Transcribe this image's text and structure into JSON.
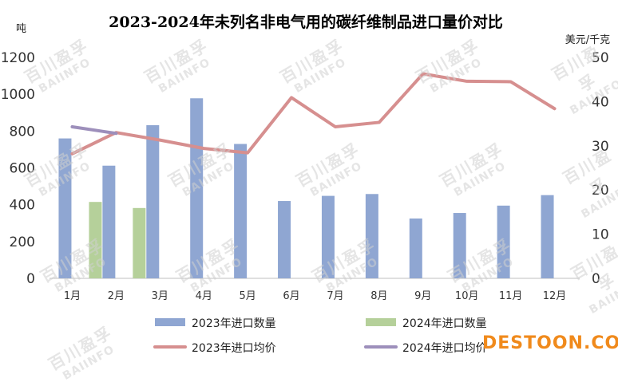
{
  "chart_data": {
    "type": "bar",
    "title": "2023-2024年未列名非电气用的碳纤维制品进口量价对比",
    "y_left_label": "吨",
    "y_right_label": "美元/千克",
    "categories": [
      "1月",
      "2月",
      "3月",
      "4月",
      "5月",
      "6月",
      "7月",
      "8月",
      "9月",
      "10月",
      "11月",
      "12月"
    ],
    "y_left_ticks": [
      "0",
      "200",
      "400",
      "600",
      "800",
      "1000",
      "1200"
    ],
    "y_right_ticks": [
      "0",
      "10",
      "20",
      "30",
      "40",
      "50"
    ],
    "ylim_left": [
      0,
      1200
    ],
    "ylim_right": [
      0,
      50
    ],
    "grid": false,
    "legend_position": "bottom",
    "series": [
      {
        "name": "2023年进口数量",
        "type": "bar",
        "axis": "left",
        "color": "#8fa6d2",
        "values": [
          760,
          612,
          832,
          978,
          730,
          420,
          448,
          458,
          325,
          355,
          395,
          452
        ]
      },
      {
        "name": "2024年进口数量",
        "type": "bar",
        "axis": "left",
        "color": "#b5d09a",
        "values": [
          415,
          382,
          null,
          null,
          null,
          null,
          null,
          null,
          null,
          null,
          null,
          null
        ]
      },
      {
        "name": "2023年进口均价",
        "type": "line",
        "axis": "right",
        "color": "#d68f8f",
        "values": [
          28.2,
          33.0,
          31.3,
          29.4,
          28.4,
          40.9,
          34.3,
          35.3,
          46.3,
          44.6,
          44.5,
          38.4
        ]
      },
      {
        "name": "2024年进口均价",
        "type": "line",
        "axis": "right",
        "color": "#9d8fbb",
        "values": [
          34.3,
          32.8,
          null,
          null,
          null,
          null,
          null,
          null,
          null,
          null,
          null,
          null
        ]
      }
    ]
  },
  "watermark": {
    "cn": "百川盈孚",
    "en": "BAIINFO"
  },
  "logo_text": "DESTOON.COM"
}
